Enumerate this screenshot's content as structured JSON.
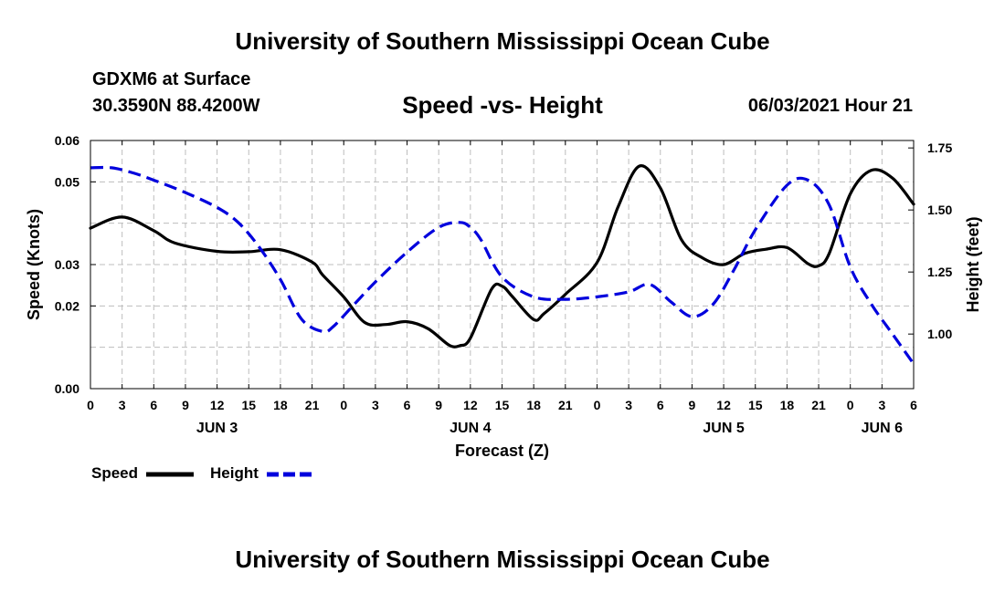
{
  "header": {
    "top_title": "University of Southern Mississippi Ocean Cube",
    "bottom_title": "University of Southern Mississippi Ocean Cube",
    "station": "GDXM6 at Surface",
    "coords": "30.3590N  88.4200W",
    "valid_time": "06/03/2021 Hour 21"
  },
  "legend": {
    "speed_label": "Speed",
    "height_label": "Height"
  },
  "chart_data": {
    "type": "line",
    "title": "Speed -vs- Height",
    "xlabel": "Forecast (Z)",
    "ylabel": "Speed (Knots)",
    "y2label": "Height (feet)",
    "x_range": [
      0,
      78
    ],
    "ylim": [
      0,
      0.06
    ],
    "y2lim": [
      0.78,
      1.78
    ],
    "grid": true,
    "x_ticks": [
      {
        "x": 0,
        "label": "0"
      },
      {
        "x": 3,
        "label": "3"
      },
      {
        "x": 6,
        "label": "6"
      },
      {
        "x": 9,
        "label": "9"
      },
      {
        "x": 12,
        "label": "12"
      },
      {
        "x": 15,
        "label": "15"
      },
      {
        "x": 18,
        "label": "18"
      },
      {
        "x": 21,
        "label": "21"
      },
      {
        "x": 24,
        "label": "0"
      },
      {
        "x": 27,
        "label": "3"
      },
      {
        "x": 30,
        "label": "6"
      },
      {
        "x": 33,
        "label": "9"
      },
      {
        "x": 36,
        "label": "12"
      },
      {
        "x": 39,
        "label": "15"
      },
      {
        "x": 42,
        "label": "18"
      },
      {
        "x": 45,
        "label": "21"
      },
      {
        "x": 48,
        "label": "0"
      },
      {
        "x": 51,
        "label": "3"
      },
      {
        "x": 54,
        "label": "6"
      },
      {
        "x": 57,
        "label": "9"
      },
      {
        "x": 60,
        "label": "12"
      },
      {
        "x": 63,
        "label": "15"
      },
      {
        "x": 66,
        "label": "18"
      },
      {
        "x": 69,
        "label": "21"
      },
      {
        "x": 72,
        "label": "0"
      },
      {
        "x": 75,
        "label": "3"
      },
      {
        "x": 78,
        "label": "6"
      }
    ],
    "day_labels": [
      {
        "x": 12,
        "label": "JUN 3"
      },
      {
        "x": 36,
        "label": "JUN 4"
      },
      {
        "x": 60,
        "label": "JUN 5"
      },
      {
        "x": 75,
        "label": "JUN 6"
      }
    ],
    "y_ticks": [
      {
        "value": 0.0,
        "label": "0.00"
      },
      {
        "value": 0.02,
        "label": "0.02"
      },
      {
        "value": 0.03,
        "label": "0.03"
      },
      {
        "value": 0.05,
        "label": "0.05"
      },
      {
        "value": 0.06,
        "label": "0.06"
      }
    ],
    "y_grid": [
      0.01,
      0.02,
      0.03,
      0.04,
      0.05
    ],
    "y2_ticks": [
      {
        "value": 1.0,
        "label": "1.00"
      },
      {
        "value": 1.25,
        "label": "1.25"
      },
      {
        "value": 1.5,
        "label": "1.50"
      },
      {
        "value": 1.75,
        "label": "1.75"
      }
    ],
    "series": [
      {
        "name": "Speed",
        "axis": "left",
        "color": "#000000",
        "dash": "solid",
        "x": [
          0,
          3,
          6,
          8,
          12,
          15,
          18,
          21,
          22,
          24,
          26,
          28,
          30,
          32,
          34,
          35,
          36,
          38,
          39,
          40,
          42,
          43,
          45,
          48,
          50,
          52,
          54,
          56,
          58,
          60,
          62,
          64,
          66,
          68,
          69,
          70,
          72,
          74,
          76,
          78
        ],
        "y": [
          0.0388,
          0.0415,
          0.0382,
          0.0352,
          0.0332,
          0.0331,
          0.0336,
          0.0306,
          0.0275,
          0.0222,
          0.016,
          0.0155,
          0.0162,
          0.0145,
          0.0105,
          0.0104,
          0.0122,
          0.024,
          0.0248,
          0.0222,
          0.0167,
          0.0182,
          0.0228,
          0.0305,
          0.044,
          0.0538,
          0.0485,
          0.036,
          0.0316,
          0.03,
          0.0327,
          0.0337,
          0.0341,
          0.0302,
          0.0297,
          0.0327,
          0.0471,
          0.0528,
          0.0509,
          0.0446
        ]
      },
      {
        "name": "Height",
        "axis": "right",
        "color": "#0000dd",
        "dash": "dashed",
        "x": [
          0,
          2,
          4,
          6,
          9,
          12,
          14,
          16,
          18,
          20,
          22,
          23,
          25,
          27,
          30,
          33,
          35,
          36,
          37,
          39,
          42,
          45,
          48,
          51,
          53,
          55,
          57,
          59,
          61,
          63,
          66,
          68,
          70,
          72,
          74,
          76,
          78
        ],
        "y": [
          1.67,
          1.67,
          1.65,
          1.62,
          1.57,
          1.51,
          1.45,
          1.35,
          1.22,
          1.06,
          1.01,
          1.03,
          1.12,
          1.21,
          1.33,
          1.43,
          1.45,
          1.43,
          1.38,
          1.23,
          1.15,
          1.14,
          1.15,
          1.17,
          1.2,
          1.13,
          1.07,
          1.12,
          1.26,
          1.42,
          1.6,
          1.62,
          1.52,
          1.27,
          1.12,
          1.0,
          0.88
        ]
      }
    ]
  }
}
